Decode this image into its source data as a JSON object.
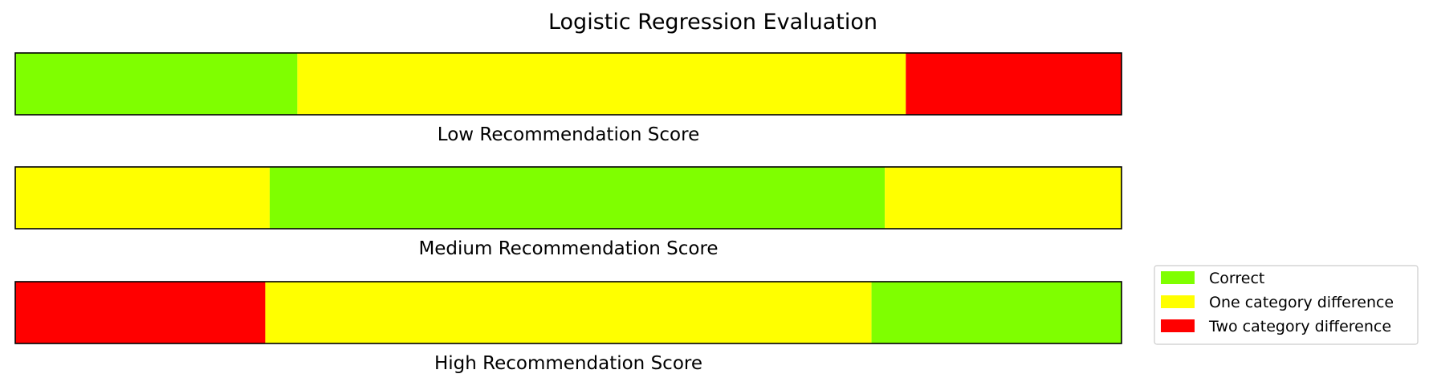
{
  "chart_data": {
    "type": "bar",
    "orientation": "horizontal-stacked",
    "title": "Logistic Regression Evaluation",
    "xlim": [
      0,
      1
    ],
    "grid": false,
    "legend_position": "right-bottom",
    "legend": [
      {
        "name": "Correct",
        "color": "#7FFF00"
      },
      {
        "name": "One category difference",
        "color": "#FFFF00"
      },
      {
        "name": "Two category difference",
        "color": "#FF0000"
      }
    ],
    "bars": [
      {
        "label": "Low Recommendation Score",
        "segments": [
          {
            "category": "Correct",
            "value": 0.255,
            "color": "#7FFF00"
          },
          {
            "category": "One category difference",
            "value": 0.55,
            "color": "#FFFF00"
          },
          {
            "category": "Two category difference",
            "value": 0.195,
            "color": "#FF0000"
          }
        ]
      },
      {
        "label": "Medium Recommendation Score",
        "segments": [
          {
            "category": "One category difference",
            "value": 0.23,
            "color": "#FFFF00"
          },
          {
            "category": "Correct",
            "value": 0.556,
            "color": "#7FFF00"
          },
          {
            "category": "One category difference",
            "value": 0.214,
            "color": "#FFFF00"
          }
        ]
      },
      {
        "label": "High Recommendation Score",
        "segments": [
          {
            "category": "Two category difference",
            "value": 0.226,
            "color": "#FF0000"
          },
          {
            "category": "One category difference",
            "value": 0.548,
            "color": "#FFFF00"
          },
          {
            "category": "Correct",
            "value": 0.226,
            "color": "#7FFF00"
          }
        ]
      }
    ]
  }
}
